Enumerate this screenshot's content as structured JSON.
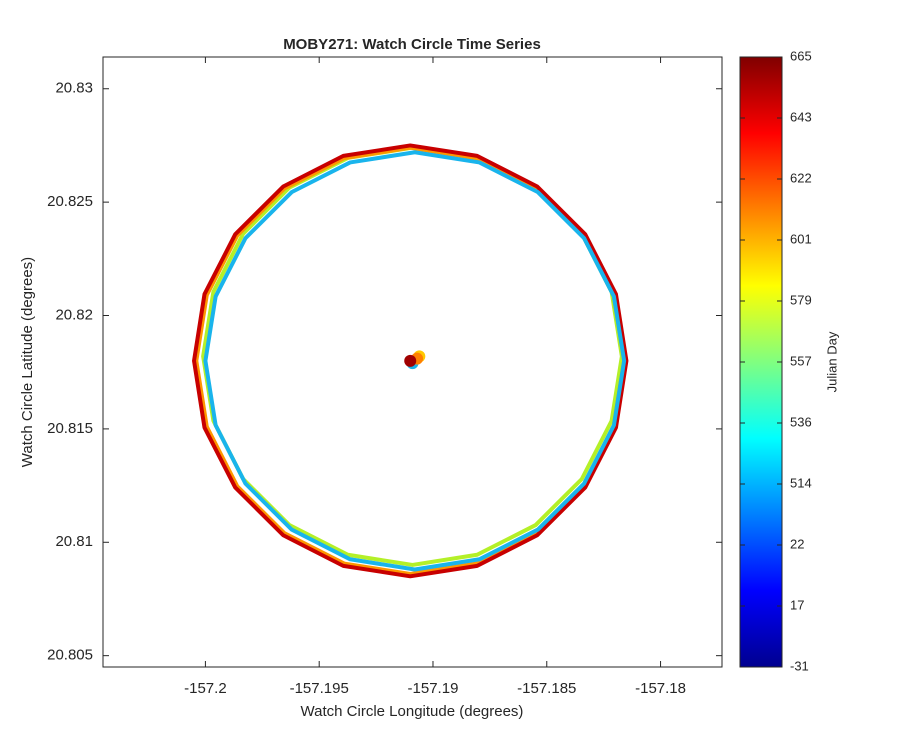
{
  "chart_data": {
    "type": "line",
    "title": "MOBY271: Watch Circle Time Series",
    "xlabel": "Watch Circle Longitude (degrees)",
    "ylabel": "Watch Circle Latitude (degrees)",
    "xlim": [
      -157.2045,
      -157.1773
    ],
    "ylim": [
      20.8045,
      20.8314
    ],
    "xticks": [
      -157.2,
      -157.195,
      -157.19,
      -157.185,
      -157.18
    ],
    "yticks": [
      20.805,
      20.81,
      20.815,
      20.82,
      20.825,
      20.83
    ],
    "series": [
      {
        "color": "#b4f028",
        "x": [
          -157.1817,
          -157.18215,
          -157.18346,
          -157.18549,
          -157.18806,
          -157.1909,
          -157.19374,
          -157.19631,
          -157.19834,
          -157.19965,
          -157.2001,
          -157.19965,
          -157.19834,
          -157.19631,
          -157.19374,
          -157.1909,
          -157.18806,
          -157.18549,
          -157.18346,
          -157.18215
        ],
        "y": [
          20.8182,
          20.82104,
          20.82361,
          20.82564,
          20.82695,
          20.8274,
          20.82695,
          20.82564,
          20.82361,
          20.82104,
          20.8182,
          20.81536,
          20.81279,
          20.81076,
          20.80945,
          20.809,
          20.80945,
          20.81076,
          20.81279,
          20.81536
        ]
      },
      {
        "color": "#ff9600",
        "x": [
          -157.1816,
          -157.18206,
          -157.1834,
          -157.18547,
          -157.1881,
          -157.191,
          -157.1939,
          -157.19653,
          -157.1986,
          -157.19994,
          -157.2004,
          -157.19994,
          -157.1986,
          -157.19653,
          -157.1939,
          -157.191,
          -157.1881,
          -157.18547,
          -157.1834,
          -157.18206
        ],
        "y": [
          20.818,
          20.8209,
          20.82353,
          20.8256,
          20.82694,
          20.8274,
          20.82694,
          20.8256,
          20.82353,
          20.8209,
          20.818,
          20.8151,
          20.81247,
          20.8104,
          20.80906,
          20.8086,
          20.80906,
          20.8104,
          20.81247,
          20.8151
        ]
      },
      {
        "color": "#c80000",
        "x": [
          -157.1815,
          -157.18196,
          -157.18331,
          -157.18542,
          -157.18806,
          -157.191,
          -157.19394,
          -157.19658,
          -157.19869,
          -157.20004,
          -157.2005,
          -157.20004,
          -157.19869,
          -157.19658,
          -157.19394,
          -157.191,
          -157.18806,
          -157.18542,
          -157.18331,
          -157.18196
        ],
        "y": [
          20.818,
          20.82094,
          20.82358,
          20.82569,
          20.82704,
          20.8275,
          20.82704,
          20.82569,
          20.82358,
          20.82094,
          20.818,
          20.81506,
          20.81242,
          20.81031,
          20.80896,
          20.8085,
          20.80896,
          20.81031,
          20.81242,
          20.81506
        ]
      },
      {
        "color": "#19b4ec",
        "x": [
          -157.1816,
          -157.18205,
          -157.18336,
          -157.18539,
          -157.18796,
          -157.1908,
          -157.19364,
          -157.19621,
          -157.19824,
          -157.19955,
          -157.2,
          -157.19955,
          -157.19824,
          -157.19621,
          -157.19364,
          -157.1908,
          -157.18796,
          -157.18539,
          -157.18336,
          -157.18205
        ],
        "y": [
          20.818,
          20.82084,
          20.82341,
          20.82544,
          20.82675,
          20.8272,
          20.82675,
          20.82544,
          20.82341,
          20.82084,
          20.818,
          20.81516,
          20.81259,
          20.81056,
          20.80925,
          20.8088,
          20.80925,
          20.81056,
          20.81259,
          20.81516
        ]
      }
    ],
    "anchor_points": {
      "x": [
        -157.1909,
        -157.1906,
        -157.1907,
        -157.191
      ],
      "y": [
        20.8179,
        20.8182,
        20.8181,
        20.818
      ],
      "colors": [
        "#1ab2e8",
        "#ffc800",
        "#ff8000",
        "#a00000"
      ]
    },
    "colorbar": {
      "label": "Julian Day",
      "ticks": [
        -31,
        17,
        22,
        514,
        536,
        557,
        579,
        601,
        622,
        643,
        665
      ],
      "colormap": [
        "#00008f",
        "#0000ff",
        "#0080ff",
        "#00ffff",
        "#80ff80",
        "#ffff00",
        "#ff8000",
        "#ff0000",
        "#800000"
      ]
    }
  }
}
